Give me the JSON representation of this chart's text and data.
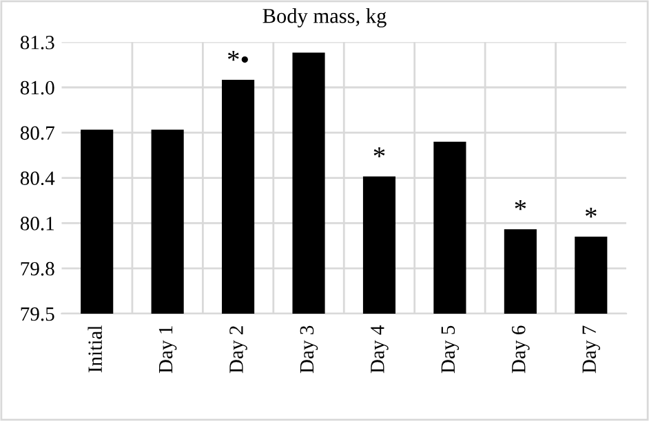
{
  "chart_data": {
    "type": "bar",
    "title": "Body mass, kg",
    "categories": [
      "Initial",
      "Day 1",
      "Day 2",
      "Day 3",
      "Day 4",
      "Day 5",
      "Day 6",
      "Day 7"
    ],
    "values": [
      80.72,
      80.72,
      81.05,
      81.23,
      80.41,
      80.64,
      80.06,
      80.01
    ],
    "color": "#000000",
    "ylim": [
      79.5,
      81.3
    ],
    "yticks": [
      {
        "value": 79.5,
        "label": "79.5"
      },
      {
        "value": 79.8,
        "label": "79.8"
      },
      {
        "value": 80.1,
        "label": "80.1"
      },
      {
        "value": 80.4,
        "label": "80.4"
      },
      {
        "value": 80.7,
        "label": "80.7"
      },
      {
        "value": 81.0,
        "label": "81.0"
      },
      {
        "value": 81.3,
        "label": "81.3"
      }
    ],
    "grid": true,
    "annotations": [
      {
        "text": "*•",
        "x": "Day 2",
        "y": 81.05
      },
      {
        "text": "*",
        "x": "Day 4",
        "y": 80.41
      },
      {
        "text": "*",
        "x": "Day 6",
        "y": 80.06
      },
      {
        "text": "*",
        "x": "Day 7",
        "y": 80.01
      }
    ]
  }
}
